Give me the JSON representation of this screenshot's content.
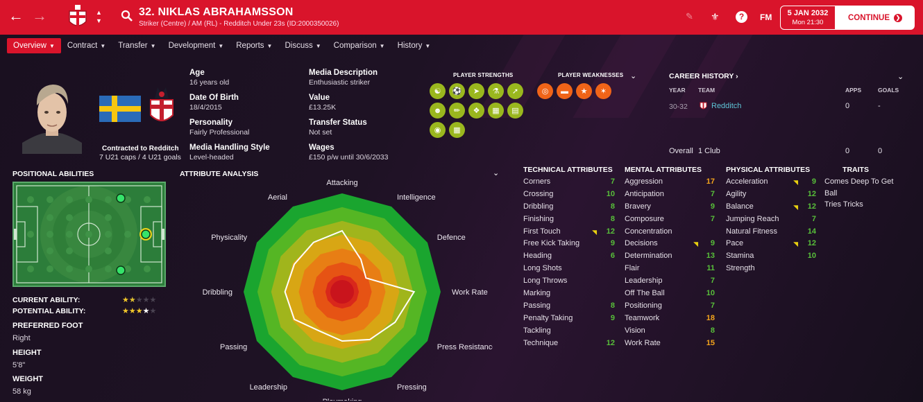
{
  "header": {
    "player_name": "32. NIKLAS ABRAHAMSSON",
    "player_sub": "Striker (Centre) / AM (RL) - Redditch Under 23s (ID:2000350026)",
    "date": "5 JAN 2032",
    "time": "Mon 21:30",
    "continue_label": "CONTINUE",
    "fm_label": "FM",
    "help_label": "?"
  },
  "menu": [
    "Overview",
    "Contract",
    "Transfer",
    "Development",
    "Reports",
    "Discuss",
    "Comparison",
    "History"
  ],
  "profile": {
    "contracted": "Contracted to Redditch",
    "caps": "7 U21 caps / 4 U21 goals"
  },
  "info": {
    "age_label": "Age",
    "age": "16 years old",
    "dob_label": "Date Of Birth",
    "dob": "18/4/2015",
    "personality_label": "Personality",
    "personality": "Fairly Professional",
    "mhs_label": "Media Handling Style",
    "mhs": "Level-headed",
    "media_label": "Media Description",
    "media": "Enthusiastic striker",
    "value_label": "Value",
    "value": "£13.25K",
    "transfer_label": "Transfer Status",
    "transfer": "Not set",
    "wages_label": "Wages",
    "wages": "£150 p/w until 30/6/2033"
  },
  "strengths_title": "PLAYER STRENGTHS",
  "weaknesses_title": "PLAYER WEAKNESSES",
  "strength_icons": [
    "team-icon",
    "dribble-icon",
    "run-icon",
    "potion-icon",
    "trend-icon",
    "head-icon",
    "bone-icon",
    "feet-icon",
    "cash-icon",
    "report-icon",
    "globe-icon",
    "document-icon"
  ],
  "weakness_icons": [
    "target-icon",
    "dumbbell-icon",
    "star-icon",
    "burst-icon"
  ],
  "career": {
    "title": "CAREER HISTORY",
    "h_year": "YEAR",
    "h_team": "TEAM",
    "h_apps": "APPS",
    "h_goals": "GOALS",
    "row_year": "30-32",
    "row_team": "Redditch",
    "row_apps": "0",
    "row_goals": "-",
    "overall_label": "Overall",
    "overall_clubs": "1 Club",
    "overall_apps": "0",
    "overall_goals": "0"
  },
  "positional": {
    "title": "POSITIONAL ABILITIES",
    "current_label": "CURRENT ABILITY:",
    "current_stars": 1.5,
    "potential_label": "POTENTIAL ABILITY:",
    "potential_stars": 3.5,
    "foot_label": "PREFERRED FOOT",
    "foot": "Right",
    "height_label": "HEIGHT",
    "height": "5'8\"",
    "weight_label": "WEIGHT",
    "weight": "58 kg"
  },
  "analysis": {
    "title": "ATTRIBUTE ANALYSIS",
    "labels": [
      "Attacking",
      "Intelligence",
      "Defence",
      "Work Rate",
      "Press Resistance",
      "Pressing",
      "Playmaking",
      "Leadership",
      "Passing",
      "Dribbling",
      "Physicality",
      "Aerial"
    ],
    "values": [
      0.62,
      0.38,
      0.28,
      0.73,
      0.62,
      0.56,
      0.5,
      0.46,
      0.56,
      0.58,
      0.56,
      0.58
    ]
  },
  "technical": {
    "title": "TECHNICAL ATTRIBUTES",
    "rows": [
      {
        "n": "Corners",
        "v": "7",
        "c": "g",
        "t": false
      },
      {
        "n": "Crossing",
        "v": "10",
        "c": "g",
        "t": false
      },
      {
        "n": "Dribbling",
        "v": "8",
        "c": "g",
        "t": false
      },
      {
        "n": "Finishing",
        "v": "8",
        "c": "g",
        "t": false
      },
      {
        "n": "First Touch",
        "v": "12",
        "c": "g",
        "t": true
      },
      {
        "n": "Free Kick Taking",
        "v": "9",
        "c": "g",
        "t": false
      },
      {
        "n": "Heading",
        "v": "6",
        "c": "g",
        "t": false
      },
      {
        "n": "Long Shots",
        "v": "",
        "c": "g",
        "t": false
      },
      {
        "n": "Long Throws",
        "v": "",
        "c": "g",
        "t": false
      },
      {
        "n": "Marking",
        "v": "",
        "c": "g",
        "t": false
      },
      {
        "n": "Passing",
        "v": "8",
        "c": "g",
        "t": false
      },
      {
        "n": "Penalty Taking",
        "v": "9",
        "c": "g",
        "t": false
      },
      {
        "n": "Tackling",
        "v": "",
        "c": "g",
        "t": false
      },
      {
        "n": "Technique",
        "v": "12",
        "c": "g",
        "t": false
      }
    ]
  },
  "mental": {
    "title": "MENTAL ATTRIBUTES",
    "rows": [
      {
        "n": "Aggression",
        "v": "17",
        "c": "o",
        "t": false
      },
      {
        "n": "Anticipation",
        "v": "7",
        "c": "g",
        "t": false
      },
      {
        "n": "Bravery",
        "v": "9",
        "c": "g",
        "t": false
      },
      {
        "n": "Composure",
        "v": "7",
        "c": "g",
        "t": false
      },
      {
        "n": "Concentration",
        "v": "",
        "c": "g",
        "t": false
      },
      {
        "n": "Decisions",
        "v": "9",
        "c": "g",
        "t": true
      },
      {
        "n": "Determination",
        "v": "13",
        "c": "g",
        "t": false
      },
      {
        "n": "Flair",
        "v": "11",
        "c": "g",
        "t": false
      },
      {
        "n": "Leadership",
        "v": "7",
        "c": "g",
        "t": false
      },
      {
        "n": "Off The Ball",
        "v": "10",
        "c": "g",
        "t": false
      },
      {
        "n": "Positioning",
        "v": "7",
        "c": "g",
        "t": false
      },
      {
        "n": "Teamwork",
        "v": "18",
        "c": "o",
        "t": false
      },
      {
        "n": "Vision",
        "v": "8",
        "c": "g",
        "t": false
      },
      {
        "n": "Work Rate",
        "v": "15",
        "c": "o",
        "t": false
      }
    ]
  },
  "physical": {
    "title": "PHYSICAL ATTRIBUTES",
    "rows": [
      {
        "n": "Acceleration",
        "v": "9",
        "c": "g",
        "t": true
      },
      {
        "n": "Agility",
        "v": "12",
        "c": "g",
        "t": false
      },
      {
        "n": "Balance",
        "v": "12",
        "c": "g",
        "t": true
      },
      {
        "n": "Jumping Reach",
        "v": "7",
        "c": "g",
        "t": false
      },
      {
        "n": "Natural Fitness",
        "v": "14",
        "c": "g",
        "t": false
      },
      {
        "n": "Pace",
        "v": "12",
        "c": "g",
        "t": true
      },
      {
        "n": "Stamina",
        "v": "10",
        "c": "g",
        "t": false
      },
      {
        "n": "Strength",
        "v": "",
        "c": "g",
        "t": false
      }
    ]
  },
  "traits": {
    "title": "TRAITS",
    "items": [
      "Comes Deep To Get",
      "Ball",
      "Tries Tricks"
    ]
  },
  "colors": {
    "accent": "#d9142b",
    "attr_green": "#58c03a",
    "attr_orange": "#f5a51c",
    "strength": "#9ab71e",
    "weakness": "#f06418"
  }
}
